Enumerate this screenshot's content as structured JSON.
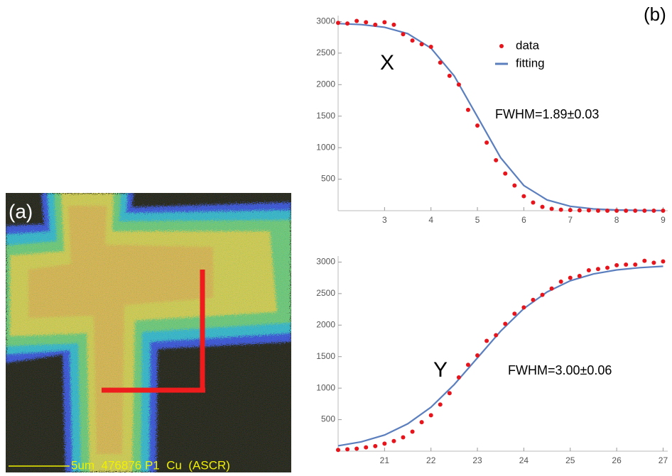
{
  "panel_a": {
    "label": "(a)",
    "caption": "5um  476876 P1  Cu  (ASCR)"
  },
  "panel_b_label": "(b)",
  "chart_data": [
    {
      "type": "scatter",
      "label": "X",
      "annotation": "FWHM=1.89±0.03",
      "legend": true,
      "xlim": [
        2,
        9.1
      ],
      "ylim": [
        0,
        3050
      ],
      "xticks": [
        3,
        4,
        5,
        6,
        7,
        8,
        9
      ],
      "yticks": [
        500,
        1000,
        1500,
        2000,
        2500,
        3000
      ],
      "series": [
        {
          "name": "data",
          "color": "#e8141c",
          "mode": "markers",
          "x": [
            2.0,
            2.2,
            2.4,
            2.6,
            2.8,
            3.0,
            3.2,
            3.4,
            3.6,
            3.8,
            4.0,
            4.2,
            4.4,
            4.6,
            4.8,
            5.0,
            5.2,
            5.4,
            5.6,
            5.8,
            6.0,
            6.2,
            6.4,
            6.6,
            6.8,
            7.0,
            7.2,
            7.4,
            7.6,
            7.8,
            8.0,
            8.2,
            8.4,
            8.6,
            8.8,
            9.0
          ],
          "values": [
            2980,
            2970,
            3010,
            2990,
            2950,
            2990,
            2950,
            2800,
            2700,
            2640,
            2600,
            2350,
            2140,
            2000,
            1600,
            1350,
            1080,
            800,
            590,
            400,
            230,
            130,
            60,
            30,
            15,
            10,
            5,
            5,
            0,
            0,
            0,
            0,
            0,
            0,
            0,
            0
          ]
        },
        {
          "name": "fitting",
          "color": "#5b7fbe",
          "mode": "line",
          "x": [
            2,
            2.5,
            3,
            3.5,
            4,
            4.5,
            5,
            5.5,
            6,
            6.5,
            7,
            7.5,
            8,
            8.5,
            9
          ],
          "values": [
            2969,
            2952,
            2910,
            2809,
            2580,
            2138,
            1490,
            842,
            400,
            171,
            70,
            28,
            11,
            4,
            2
          ]
        }
      ]
    },
    {
      "type": "scatter",
      "label": "Y",
      "annotation": "FWHM=3.00±0.06",
      "legend": false,
      "xlim": [
        20,
        27.1
      ],
      "ylim": [
        0,
        3050
      ],
      "xticks": [
        21,
        22,
        23,
        24,
        25,
        26,
        27
      ],
      "yticks": [
        500,
        1000,
        1500,
        2000,
        2500,
        3000
      ],
      "series": [
        {
          "name": "data",
          "color": "#e8141c",
          "mode": "markers",
          "x": [
            20.0,
            20.2,
            20.4,
            20.6,
            20.8,
            21.0,
            21.2,
            21.4,
            21.6,
            21.8,
            22.0,
            22.2,
            22.4,
            22.6,
            22.8,
            23.0,
            23.2,
            23.4,
            23.6,
            23.8,
            24.0,
            24.2,
            24.4,
            24.6,
            24.8,
            25.0,
            25.2,
            25.4,
            25.6,
            25.8,
            26.0,
            26.2,
            26.4,
            26.6,
            26.8,
            27.0
          ],
          "values": [
            20,
            30,
            40,
            60,
            80,
            120,
            160,
            220,
            310,
            460,
            570,
            740,
            920,
            1170,
            1370,
            1520,
            1750,
            1840,
            2020,
            2180,
            2280,
            2400,
            2480,
            2580,
            2690,
            2750,
            2780,
            2870,
            2890,
            2910,
            2950,
            2960,
            2960,
            3020,
            2990,
            3010
          ]
        },
        {
          "name": "fitting",
          "color": "#5b7fbe",
          "mode": "line",
          "x": [
            20,
            20.5,
            21,
            21.5,
            22,
            22.5,
            23,
            23.5,
            24,
            24.5,
            25,
            25.5,
            26,
            26.5,
            27
          ],
          "values": [
            85,
            149,
            257,
            434,
            698,
            1057,
            1480,
            1903,
            2262,
            2526,
            2703,
            2811,
            2875,
            2912,
            2933
          ]
        }
      ]
    }
  ]
}
